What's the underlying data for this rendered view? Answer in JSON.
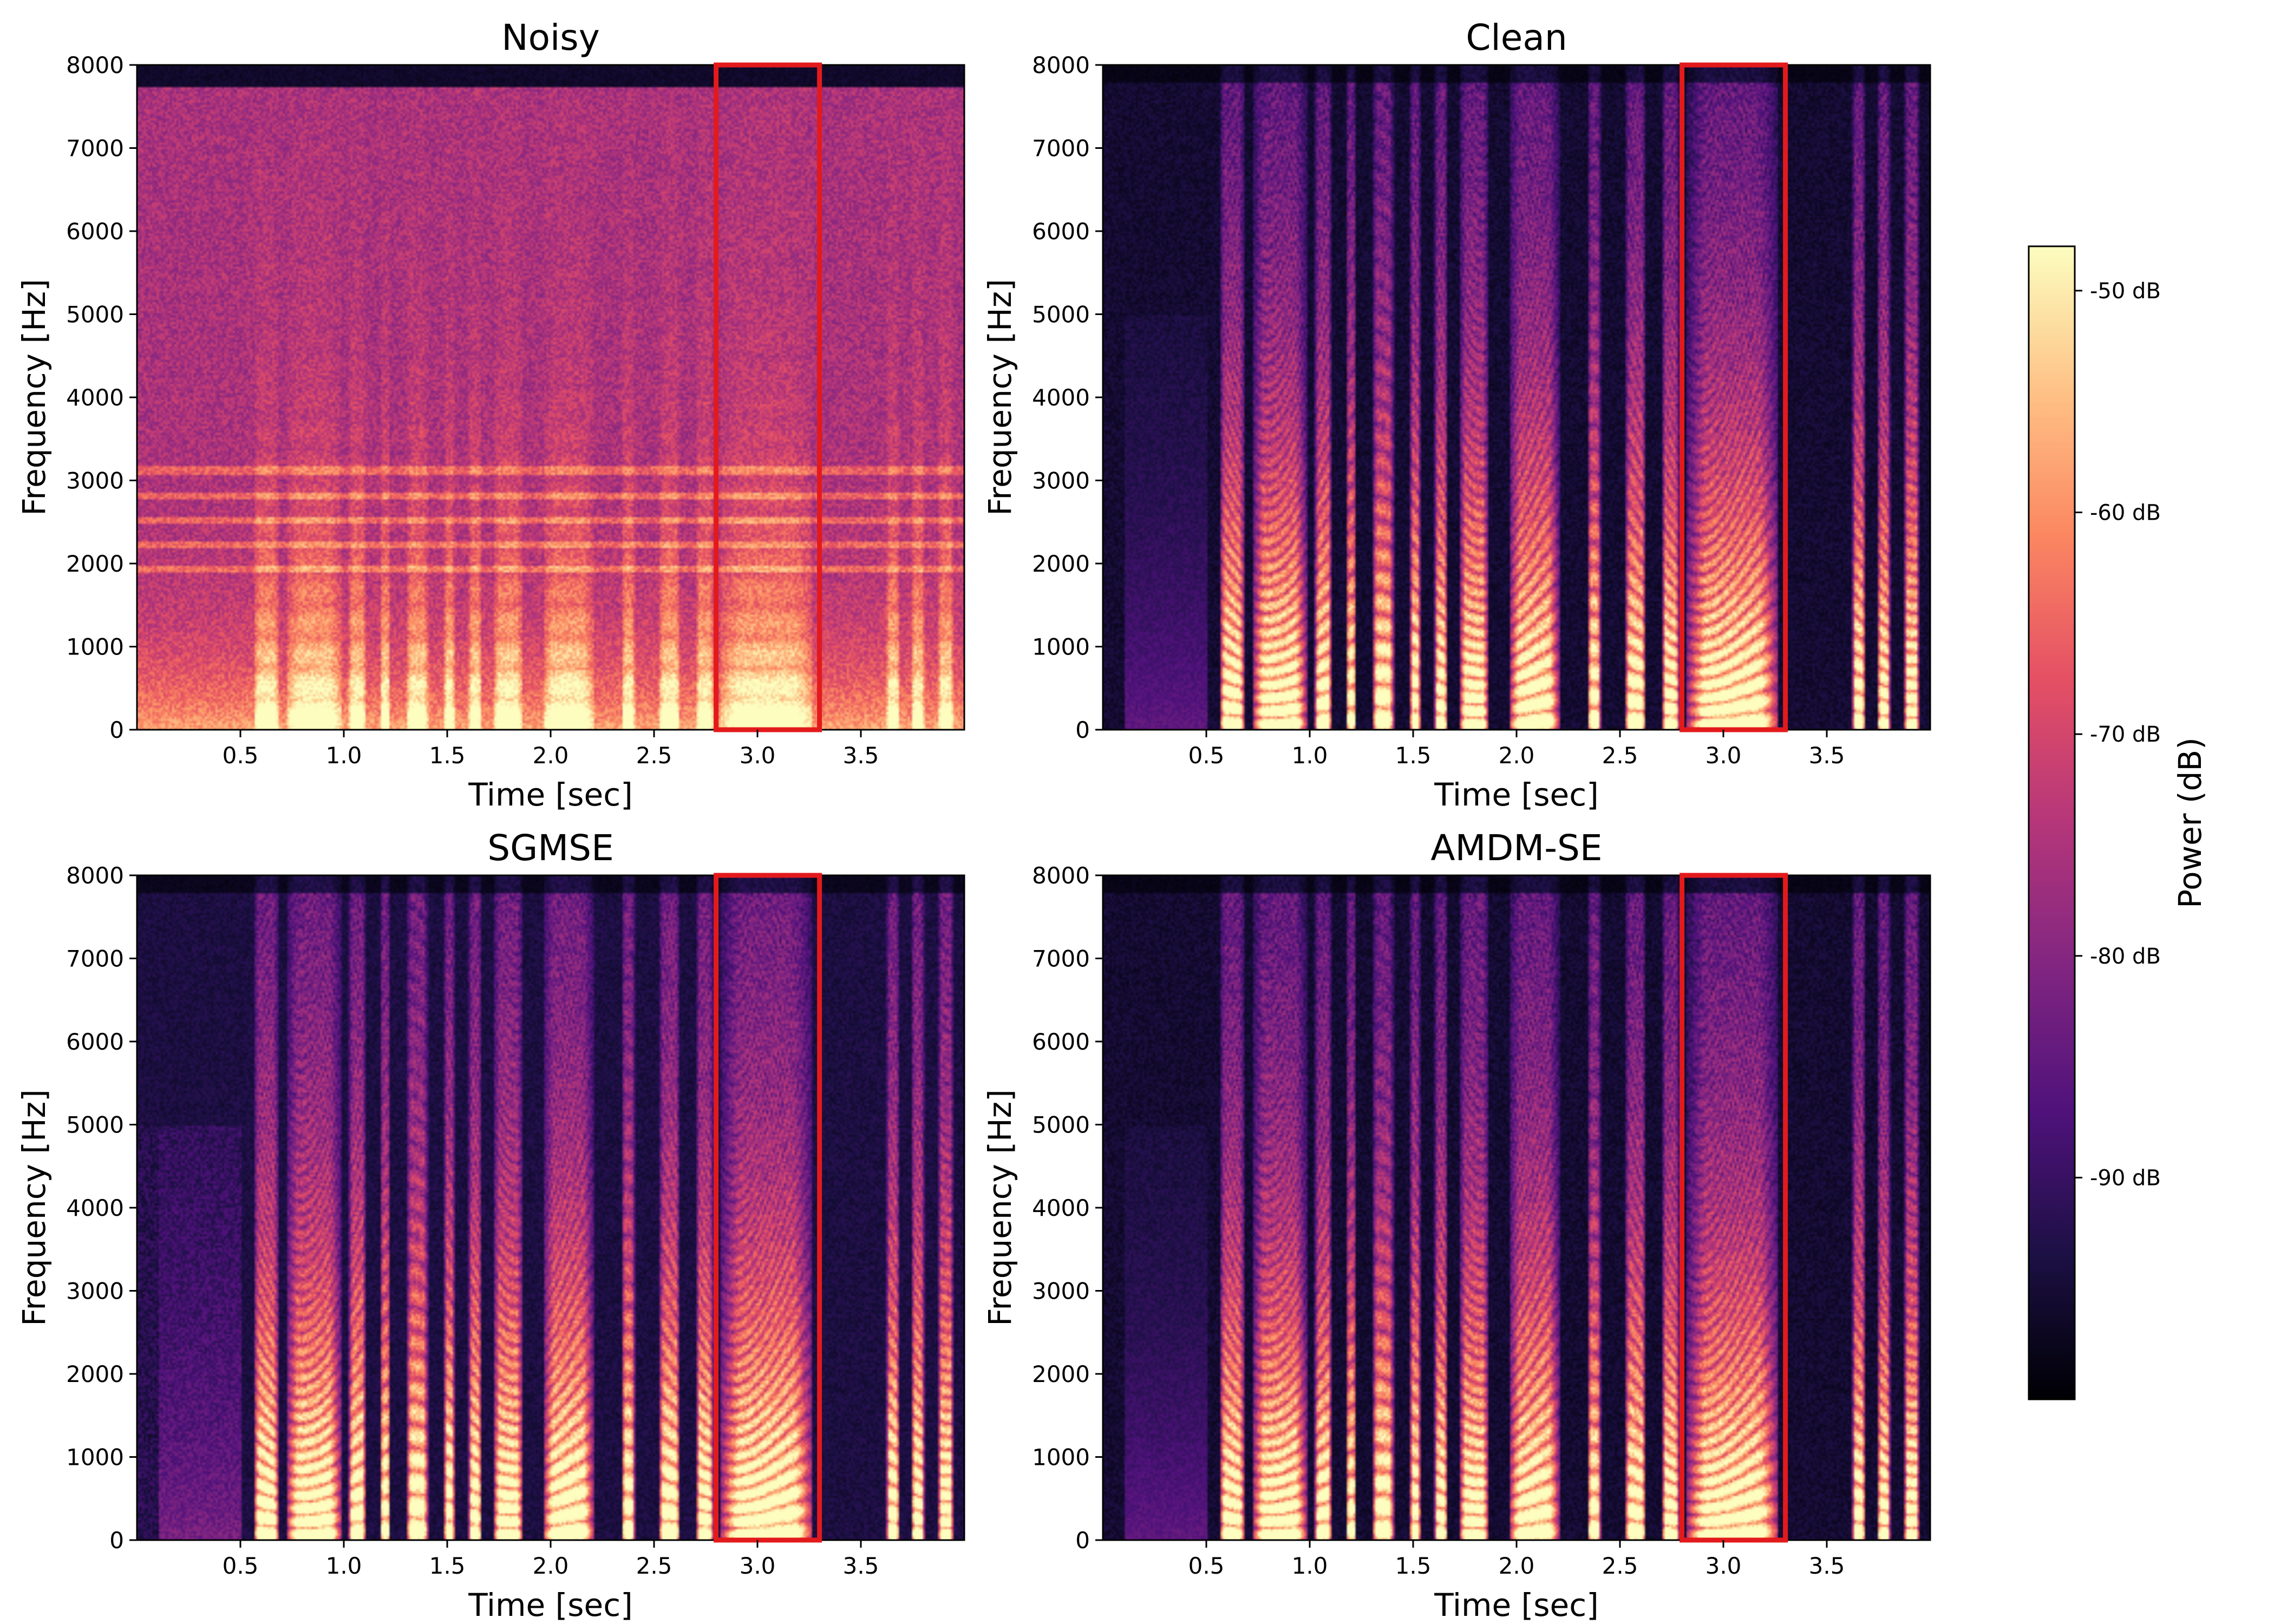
{
  "chart_data": {
    "type": "heatmap",
    "panels": [
      {
        "title": "Noisy",
        "variant": "noisy"
      },
      {
        "title": "Clean",
        "variant": "clean"
      },
      {
        "title": "SGMSE",
        "variant": "sgmse"
      },
      {
        "title": "AMDM-SE",
        "variant": "amdm"
      }
    ],
    "xlabel": "Time [sec]",
    "ylabel": "Frequency [Hz]",
    "xlim": [
      0,
      4.0
    ],
    "ylim": [
      0,
      8000
    ],
    "xticks": [
      0.5,
      1.0,
      1.5,
      2.0,
      2.5,
      3.0,
      3.5
    ],
    "yticks": [
      0,
      1000,
      2000,
      3000,
      4000,
      5000,
      6000,
      7000,
      8000
    ],
    "highlight_box": {
      "x": [
        2.8,
        3.3
      ],
      "y": [
        0,
        8000
      ],
      "color": "#e31a1c"
    },
    "colorbar": {
      "label": "Power (dB)",
      "colormap": "magma",
      "range": [
        -100,
        -48
      ],
      "ticks": [
        -50,
        -60,
        -70,
        -80,
        -90
      ],
      "tick_labels": [
        "-50 dB",
        "-60 dB",
        "-70 dB",
        "-80 dB",
        "-90 dB"
      ]
    }
  }
}
